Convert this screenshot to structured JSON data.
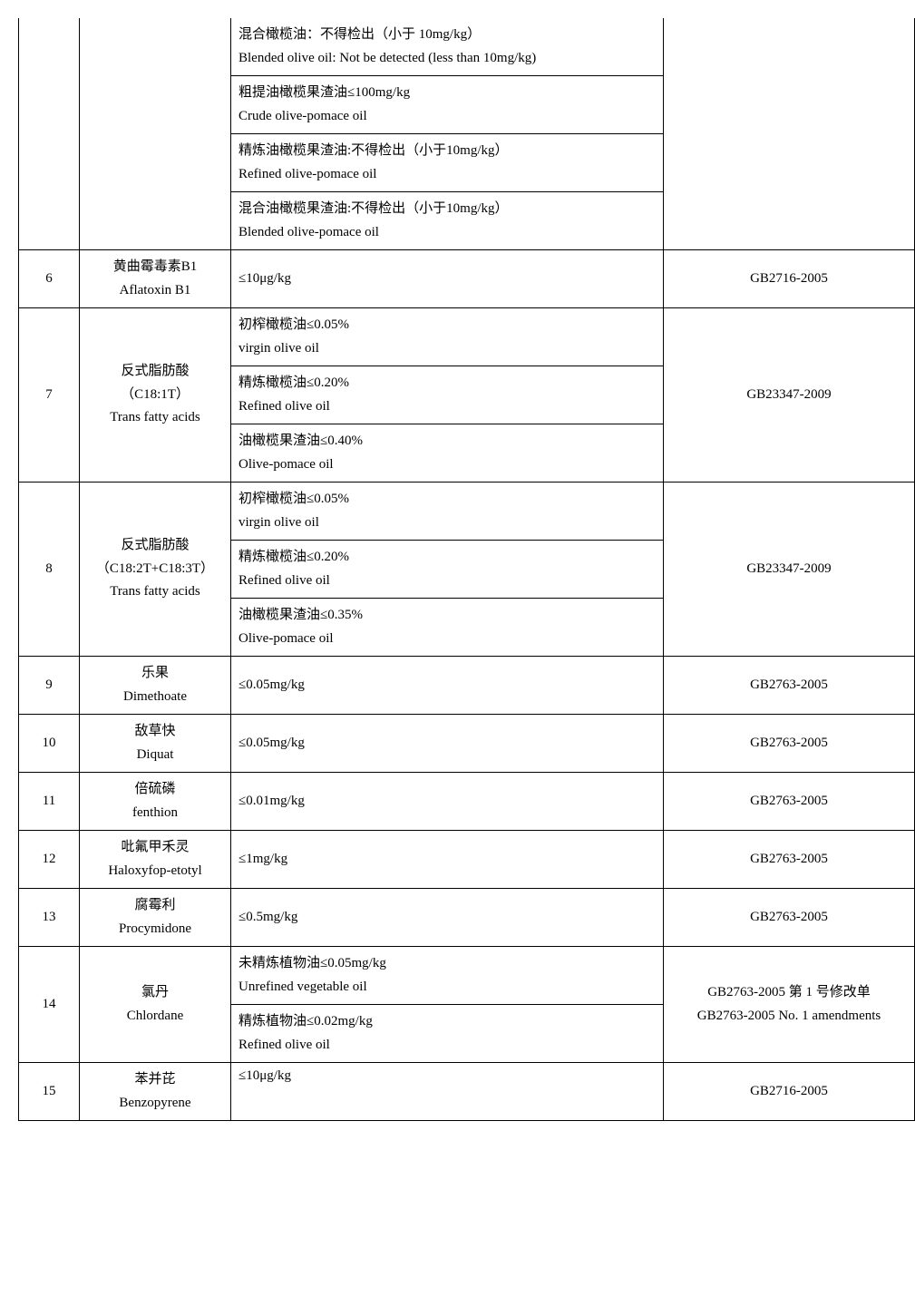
{
  "rows": {
    "r5": {
      "sub1a": "混合橄榄油：不得检出（小于 10mg/kg）",
      "sub1b": "Blended olive oil: Not be detected (less than 10mg/kg)",
      "sub2a": "粗提油橄榄果渣油≤100mg/kg",
      "sub2b": "Crude olive-pomace oil",
      "sub3a": "精炼油橄榄果渣油:不得检出（小于10mg/kg）",
      "sub3b": "Refined olive-pomace oil",
      "sub4a": "混合油橄榄果渣油:不得检出（小于10mg/kg）",
      "sub4b": "Blended olive-pomace oil"
    },
    "r6": {
      "num": "6",
      "name_cn": "黄曲霉毒素B1",
      "name_en": "Aflatoxin B1",
      "req": "≤10μg/kg",
      "std": "GB2716-2005"
    },
    "r7": {
      "num": "7",
      "name_cn": "反式脂肪酸（C18:1T）",
      "name_en": "Trans fatty acids",
      "sub1a": "初榨橄榄油≤0.05%",
      "sub1b": "virgin olive oil",
      "sub2a": "精炼橄榄油≤0.20%",
      "sub2b": "Refined olive oil",
      "sub3a": "油橄榄果渣油≤0.40%",
      "sub3b": "Olive-pomace oil",
      "std": "GB23347-2009"
    },
    "r8": {
      "num": "8",
      "name_cn": "反式脂肪酸（C18:2T+C18:3T）",
      "name_en": "Trans fatty acids",
      "sub1a": "初榨橄榄油≤0.05%",
      "sub1b": "virgin olive oil",
      "sub2a": "精炼橄榄油≤0.20%",
      "sub2b": "Refined olive oil",
      "sub3a": "油橄榄果渣油≤0.35%",
      "sub3b": "Olive-pomace oil",
      "std": "GB23347-2009"
    },
    "r9": {
      "num": "9",
      "name_cn": "乐果",
      "name_en": "Dimethoate",
      "req": "≤0.05mg/kg",
      "std": "GB2763-2005"
    },
    "r10": {
      "num": "10",
      "name_cn": "敌草快",
      "name_en": "Diquat",
      "req": "≤0.05mg/kg",
      "std": "GB2763-2005"
    },
    "r11": {
      "num": "11",
      "name_cn": "倍硫磷",
      "name_en": "fenthion",
      "req": "≤0.01mg/kg",
      "std": "GB2763-2005"
    },
    "r12": {
      "num": "12",
      "name_cn": "吡氟甲禾灵",
      "name_en": "Haloxyfop-etotyl",
      "req": "≤1mg/kg",
      "std": "GB2763-2005"
    },
    "r13": {
      "num": "13",
      "name_cn": "腐霉利",
      "name_en": "Procymidone",
      "req": "≤0.5mg/kg",
      "std": "GB2763-2005"
    },
    "r14": {
      "num": "14",
      "name_cn": "氯丹",
      "name_en": "Chlordane",
      "sub1a": "未精炼植物油≤0.05mg/kg",
      "sub1b": "Unrefined vegetable oil",
      "sub2a": "精炼植物油≤0.02mg/kg",
      "sub2b": "Refined olive oil",
      "std_cn": "GB2763-2005 第 1 号修改单",
      "std_en": "GB2763-2005  No. 1 amendments"
    },
    "r15": {
      "num": "15",
      "name_cn": "苯并芘",
      "name_en": "Benzopyrene",
      "req": "≤10μg/kg",
      "std": "GB2716-2005"
    }
  }
}
